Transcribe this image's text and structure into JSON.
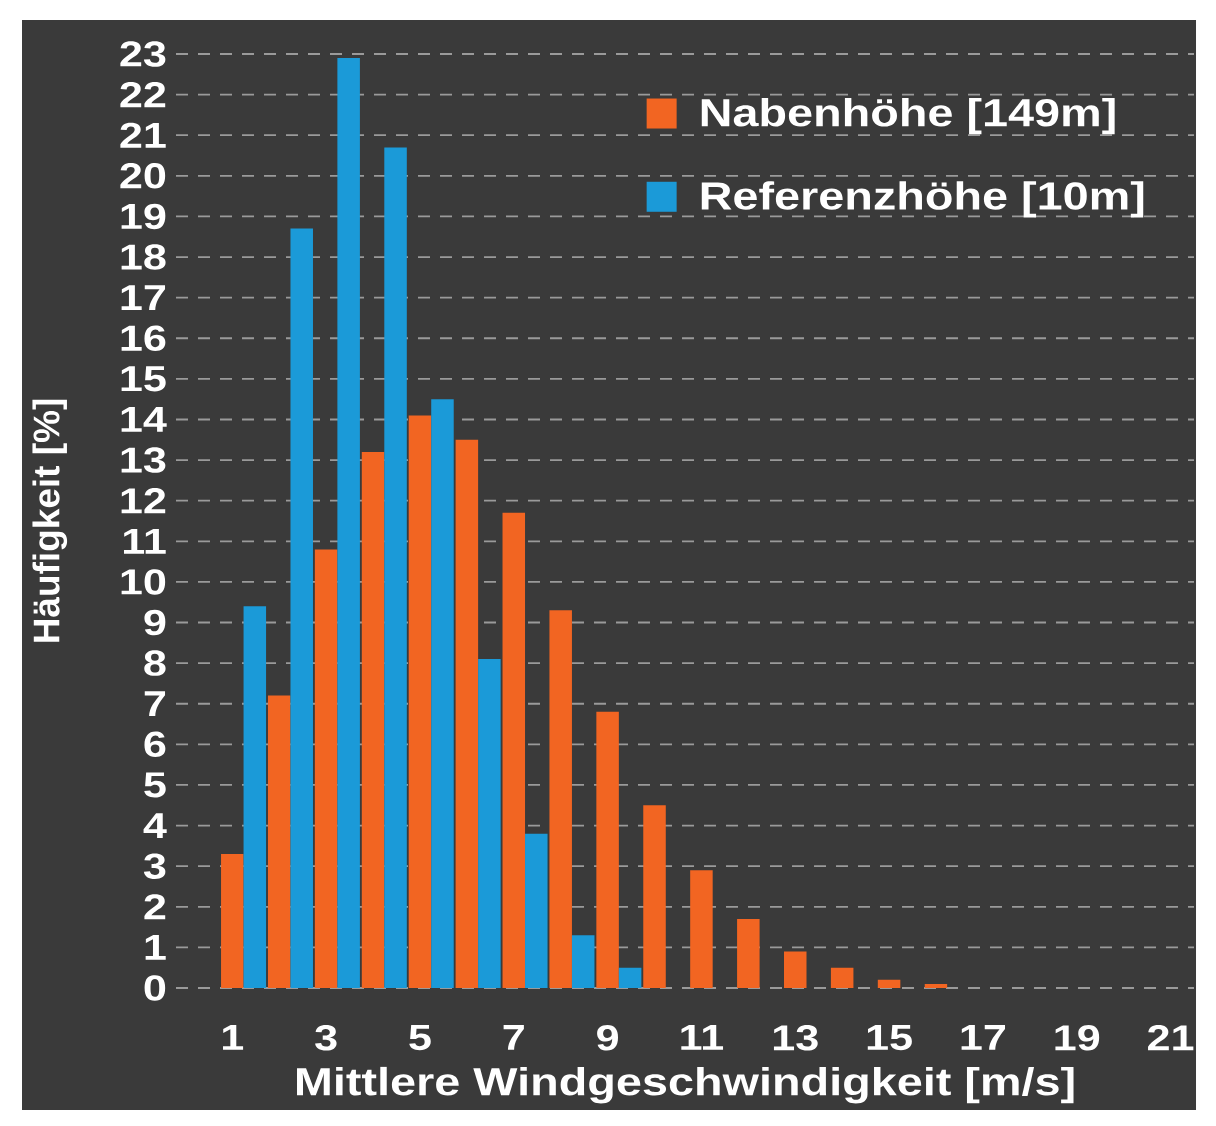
{
  "chart_data": {
    "type": "bar",
    "xlabel": "Mittlere Windgeschwindigkeit [m/s]",
    "ylabel": "Häufigkeit [%]",
    "x": [
      1,
      2,
      3,
      4,
      5,
      6,
      7,
      8,
      9,
      10,
      11,
      12,
      13,
      14,
      15,
      16
    ],
    "series": [
      {
        "name": "Nabenhöhe [149m]",
        "color": "#f26522",
        "values": [
          3.3,
          7.2,
          10.8,
          13.2,
          14.1,
          13.5,
          11.7,
          9.3,
          6.8,
          4.5,
          2.9,
          1.7,
          0.9,
          0.5,
          0.2,
          0.1
        ]
      },
      {
        "name": "Referenzhöhe [10m]",
        "color": "#1b9ad8",
        "values": [
          9.4,
          18.7,
          22.9,
          20.7,
          14.5,
          8.1,
          3.8,
          1.3,
          0.5,
          null,
          null,
          null,
          null,
          null,
          null,
          null
        ]
      }
    ],
    "xlim": [
      -0.2,
      21.5
    ],
    "xticks": [
      1,
      3,
      5,
      7,
      9,
      11,
      13,
      15,
      17,
      19,
      21
    ],
    "ylim": [
      0,
      23
    ],
    "yticks": [
      0,
      1,
      2,
      3,
      4,
      5,
      6,
      7,
      8,
      9,
      10,
      11,
      12,
      13,
      14,
      15,
      16,
      17,
      18,
      19,
      20,
      21,
      22,
      23
    ],
    "grid": "y",
    "legend": "top right"
  }
}
